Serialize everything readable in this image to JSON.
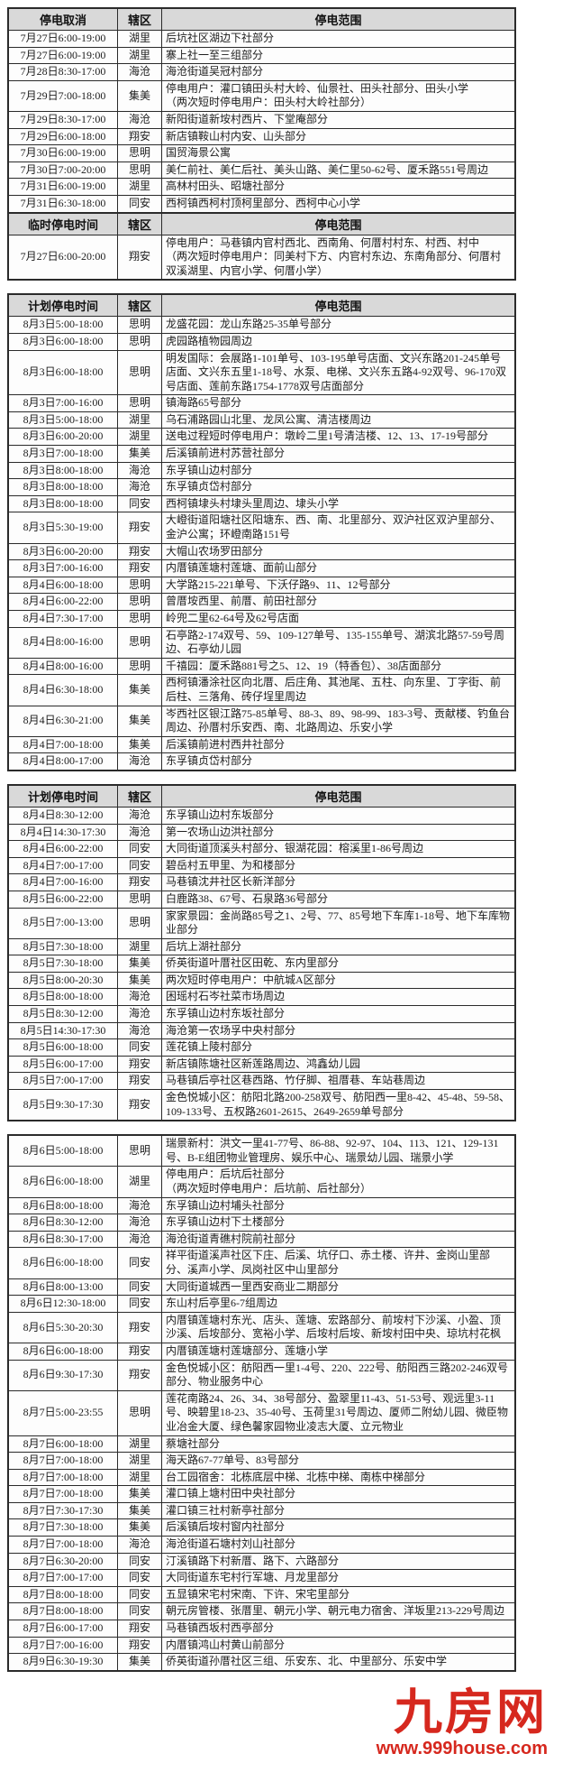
{
  "logo": {
    "name": "九房网",
    "url": "www.999house.com",
    "color": "#d6281e"
  },
  "tables": [
    {
      "id": "outage-cancel",
      "attached": false,
      "headers": {
        "time": "停电取消",
        "district": "辖区",
        "range": "停电范围"
      },
      "rows": [
        {
          "t": "7月27日6:00-19:00",
          "d": "湖里",
          "r": "后坑社区湖边下社部分"
        },
        {
          "t": "7月27日6:00-19:00",
          "d": "湖里",
          "r": "寨上社一至三组部分"
        },
        {
          "t": "7月28日8:30-17:00",
          "d": "海沧",
          "r": "海沧街道吴冠村部分"
        },
        {
          "t": "7月29日7:00-18:00",
          "d": "集美",
          "r": "停电用户：灌口镇田头村大岭、仙景社、田头社部分、田头小学\n（两次短时停电用户：田头村大岭社部分）"
        },
        {
          "t": "7月29日8:30-17:00",
          "d": "海沧",
          "r": "新阳街道新垵村西片、下堂庵部分"
        },
        {
          "t": "7月29日6:00-18:00",
          "d": "翔安",
          "r": "新店镇鞍山村内安、山头部分"
        },
        {
          "t": "7月30日6:00-19:00",
          "d": "思明",
          "r": "国贸海景公寓"
        },
        {
          "t": "7月30日7:00-20:00",
          "d": "思明",
          "r": "美仁前社、美仁后社、美头山路、美仁里50-62号、厦禾路551号周边"
        },
        {
          "t": "7月31日6:00-19:00",
          "d": "湖里",
          "r": "高林村田头、昭塘社部分"
        },
        {
          "t": "7月31日6:30-18:00",
          "d": "同安",
          "r": "西柯镇西柯村顶柯里部分、西柯中心小学"
        }
      ]
    },
    {
      "id": "outage-temporary",
      "attached": true,
      "headers": {
        "time": "临时停电时间",
        "district": "辖区",
        "range": "停电范围"
      },
      "rows": [
        {
          "t": "7月27日6:00-20:00",
          "d": "翔安",
          "r": "停电用户：马巷镇内官村西北、西南角、何厝村村东、村西、村中\n（两次短时停电用户：同美村下方、内官村东边、东南角部分、何厝村双溪湖里、内官小学、何厝小学）"
        }
      ]
    },
    {
      "id": "outage-planned-1",
      "attached": false,
      "headers": {
        "time": "计划停电时间",
        "district": "辖区",
        "range": "停电范围"
      },
      "rows": [
        {
          "t": "8月3日5:00-18:00",
          "d": "思明",
          "r": "龙盛花园：龙山东路25-35单号部分"
        },
        {
          "t": "8月3日6:00-18:00",
          "d": "思明",
          "r": "虎园路植物园周边"
        },
        {
          "t": "8月3日6:00-18:00",
          "d": "思明",
          "r": "明发国际：会展路1-101单号、103-195单号店面、文兴东路201-245单号店面、文兴东五里1-18号、水泵、电梯、文兴东五路4-92双号、96-170双号店面、莲前东路1754-1778双号店面部分"
        },
        {
          "t": "8月3日7:00-16:00",
          "d": "思明",
          "r": "镇海路65号部分"
        },
        {
          "t": "8月3日5:00-18:00",
          "d": "湖里",
          "r": "乌石浦路园山北里、龙凤公寓、清洁楼周边"
        },
        {
          "t": "8月3日6:00-20:00",
          "d": "湖里",
          "r": "送电过程短时停电用户：墩岭二里1号清洁楼、12、13、17-19号部分"
        },
        {
          "t": "8月3日7:00-18:00",
          "d": "集美",
          "r": "后溪镇前进村苏营社部分"
        },
        {
          "t": "8月3日8:00-18:00",
          "d": "海沧",
          "r": "东孚镇山边村部分"
        },
        {
          "t": "8月3日8:00-18:00",
          "d": "海沧",
          "r": "东孚镇贞岱村部分"
        },
        {
          "t": "8月3日8:00-18:00",
          "d": "同安",
          "r": "西柯镇埭头村埭头里周边、埭头小学"
        },
        {
          "t": "8月3日5:30-19:00",
          "d": "翔安",
          "r": "大嶝街道阳塘社区阳塘东、西、南、北里部分、双沪社区双沪里部分、金沪公寓；环嶝南路151号"
        },
        {
          "t": "8月3日6:00-20:00",
          "d": "翔安",
          "r": "大帽山农场罗田部分"
        },
        {
          "t": "8月3日7:00-16:00",
          "d": "翔安",
          "r": "内厝镇莲塘村莲塘、面前山部分"
        },
        {
          "t": "8月4日6:00-18:00",
          "d": "思明",
          "r": "大学路215-221单号、下沃仔路9、11、12号部分"
        },
        {
          "t": "8月4日6:00-22:00",
          "d": "思明",
          "r": "曾厝垵西里、前厝、前田社部分"
        },
        {
          "t": "8月4日7:30-17:00",
          "d": "思明",
          "r": "岭兜二里62-64号及62号店面"
        },
        {
          "t": "8月4日8:00-16:00",
          "d": "思明",
          "r": "石亭路2-174双号、59、109-127单号、135-155单号、湖滨北路57-59号周边、石亭幼儿园"
        },
        {
          "t": "8月4日8:00-16:00",
          "d": "思明",
          "r": "千禧园：厦禾路881号之5、12、19（特香包）、38店面部分"
        },
        {
          "t": "8月4日6:30-18:00",
          "d": "集美",
          "r": "西柯镇潘涂社区向北厝、后庄角、其池尾、五柱、向东里、丁字街、前后柱、三落角、砖仔埕里周边"
        },
        {
          "t": "8月4日6:30-21:00",
          "d": "集美",
          "r": "岑西社区银江路75-85单号、88-3、89、98-99、183-3号、贡献楼、钓鱼台周边、孙厝村乐安西、南、北路周边、乐安小学"
        },
        {
          "t": "8月4日7:00-18:00",
          "d": "集美",
          "r": "后溪镇前进村西井社部分"
        },
        {
          "t": "8月4日8:00-17:00",
          "d": "海沧",
          "r": "东孚镇贞岱村部分"
        }
      ]
    },
    {
      "id": "outage-planned-2",
      "attached": false,
      "headers": {
        "time": "计划停电时间",
        "district": "辖区",
        "range": "停电范围"
      },
      "rows": [
        {
          "t": "8月4日8:30-12:00",
          "d": "海沧",
          "r": "东孚镇山边村东坂部分"
        },
        {
          "t": "8月4日14:30-17:30",
          "d": "海沧",
          "r": "第一农场山边洪社部分"
        },
        {
          "t": "8月4日6:00-22:00",
          "d": "同安",
          "r": "大同街道顶溪头村部分、银湖花园：榕溪里1-86号周边"
        },
        {
          "t": "8月4日7:00-17:00",
          "d": "同安",
          "r": "碧岳村五甲里、为和楼部分"
        },
        {
          "t": "8月4日7:00-16:00",
          "d": "翔安",
          "r": "马巷镇沈井社区长新洋部分"
        },
        {
          "t": "8月5日6:00-22:00",
          "d": "思明",
          "r": "白鹿路38、67号、石泉路36号部分"
        },
        {
          "t": "8月5日7:00-13:00",
          "d": "思明",
          "r": "家家景园：金尚路85号之1、2号、77、85号地下车库1-18号、地下车库物业部分"
        },
        {
          "t": "8月5日7:30-18:00",
          "d": "湖里",
          "r": "后坑上湖社部分"
        },
        {
          "t": "8月5日7:30-18:00",
          "d": "集美",
          "r": "侨英街道叶厝社区田乾、东内里部分"
        },
        {
          "t": "8月5日8:00-20:30",
          "d": "集美",
          "r": "两次短时停电用户：中航城A区部分"
        },
        {
          "t": "8月5日8:00-18:00",
          "d": "海沧",
          "r": "困瑶村石岑社菜市场周边"
        },
        {
          "t": "8月5日8:30-12:00",
          "d": "海沧",
          "r": "东孚镇山边村东坂社部分"
        },
        {
          "t": "8月5日14:30-17:30",
          "d": "海沧",
          "r": "海沧第一农场孚中央村部分"
        },
        {
          "t": "8月5日6:00-18:00",
          "d": "同安",
          "r": "莲花镇上陵村部分"
        },
        {
          "t": "8月5日6:00-17:00",
          "d": "翔安",
          "r": "新店镇陈塘社区新莲路周边、鸿鑫幼儿园"
        },
        {
          "t": "8月5日7:00-17:00",
          "d": "翔安",
          "r": "马巷镇后亭社区巷西路、竹仔脚、祖厝巷、车站巷周边"
        },
        {
          "t": "8月5日9:30-17:30",
          "d": "翔安",
          "r": "金色悦城小区：舫阳北路200-258双号、舫阳西一里8-42、45-48、59-58、109-133号、五权路2601-2615、2649-2659单号部分"
        }
      ]
    },
    {
      "id": "outage-planned-3",
      "attached": false,
      "headers": null,
      "rows": [
        {
          "t": "8月6日5:00-18:00",
          "d": "思明",
          "r": "瑞景新村：洪文一里41-77号、86-88、92-97、104、113、121、129-131号、B-E组团物业管理房、娱乐中心、瑞景幼儿园、瑞景小学"
        },
        {
          "t": "8月6日6:00-18:00",
          "d": "湖里",
          "r": "停电用户：后坑后社部分\n（两次短时停电用户：后坑前、后社部分）"
        },
        {
          "t": "8月6日8:00-18:00",
          "d": "海沧",
          "r": "东孚镇山边村埔头社部分"
        },
        {
          "t": "8月6日8:30-12:00",
          "d": "海沧",
          "r": "东孚镇山边村下土楼部分"
        },
        {
          "t": "8月6日8:30-17:00",
          "d": "海沧",
          "r": "海沧街道青礁村院前社部分"
        },
        {
          "t": "8月6日6:00-18:00",
          "d": "同安",
          "r": "祥平街道溪声社区下庄、后溪、坑仔口、赤土楼、许井、金岗山里部分、溪声小学、凤岗社区中山里部分"
        },
        {
          "t": "8月6日8:00-13:00",
          "d": "同安",
          "r": "大同街道城西一里西安商业二期部分"
        },
        {
          "t": "8月6日12:30-18:00",
          "d": "同安",
          "r": "东山村后亭里6-7组周边"
        },
        {
          "t": "8月6日5:30-20:30",
          "d": "翔安",
          "r": "内厝镇莲塘村东光、店头、莲塘、宏路部分、前垵村下沙溪、小盈、顶沙溪、后垵部分、宽裕小学、后垵村后垵、新垵村田中央、琼坑村花枫"
        },
        {
          "t": "8月6日6:00-18:00",
          "d": "翔安",
          "r": "内厝镇莲塘村莲塘部分、莲塘小学"
        },
        {
          "t": "8月6日9:30-17:30",
          "d": "翔安",
          "r": "金色悦城小区：舫阳西一里1-4号、220、222号、舫阳西三路202-246双号部分、物业服务中心"
        },
        {
          "t": "8月7日5:00-23:55",
          "d": "思明",
          "r": "莲花南路24、26、34、38号部分、盈翠里11-43、51-53号、观远里3-11号、映碧里18-23、35-40号、玉荷里31号周边、厦师二附幼儿园、微臣物业冶金大厦、绿色馨家园物业凌志大厦、立元物业"
        },
        {
          "t": "8月7日6:00-18:00",
          "d": "湖里",
          "r": "蔡塘社部分"
        },
        {
          "t": "8月7日7:00-18:00",
          "d": "湖里",
          "r": "海天路67-77单号、83号部分"
        },
        {
          "t": "8月7日7:00-18:00",
          "d": "湖里",
          "r": "台工园宿舍：北栋底层中梯、北栋中梯、南栋中梯部分"
        },
        {
          "t": "8月7日7:00-18:00",
          "d": "集美",
          "r": "灌口镇上塘村田中央社部分"
        },
        {
          "t": "8月7日7:30-17:30",
          "d": "集美",
          "r": "灌口镇三社村新亭社部分"
        },
        {
          "t": "8月7日7:30-18:00",
          "d": "集美",
          "r": "后溪镇后垵村窗内社部分"
        },
        {
          "t": "8月7日7:00-18:00",
          "d": "海沧",
          "r": "海沧街道石塘村刘山社部分"
        },
        {
          "t": "8月7日6:30-20:00",
          "d": "同安",
          "r": "汀溪镇路下村新厝、路下、六路部分"
        },
        {
          "t": "8月7日7:00-17:00",
          "d": "同安",
          "r": "大同街道东宅村行军塘、月龙里部分"
        },
        {
          "t": "8月7日8:00-18:00",
          "d": "同安",
          "r": "五显镇宋宅村宋南、下许、宋宅里部分"
        },
        {
          "t": "8月7日8:00-18:00",
          "d": "同安",
          "r": "朝元房管楼、张厝里、朝元小学、朝元电力宿舍、洋坂里213-229号周边"
        },
        {
          "t": "8月7日6:00-17:00",
          "d": "翔安",
          "r": "马巷镇西坂村西亭部分"
        },
        {
          "t": "8月7日7:00-16:00",
          "d": "翔安",
          "r": "内厝镇鸿山村黄山前部分"
        },
        {
          "t": "8月9日6:30-19:30",
          "d": "集美",
          "r": "侨英街道孙厝社区三组、乐安东、北、中里部分、乐安中学"
        }
      ]
    }
  ]
}
